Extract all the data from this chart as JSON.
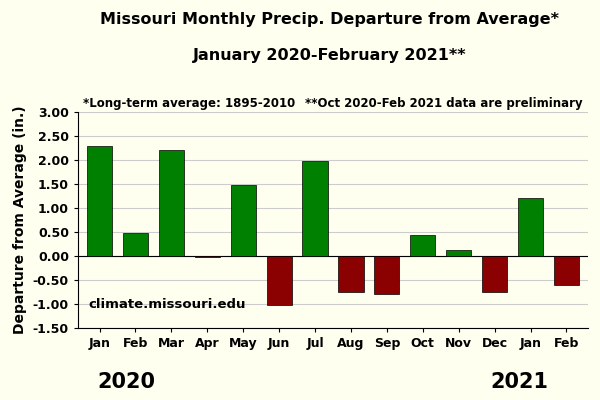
{
  "title_line1": "Missouri Monthly Precip. Departure from Average*",
  "title_line2": "January 2020-February 2021**",
  "ylabel": "Departure from Average (in.)",
  "annotation_left": "*Long-term average: 1895-2010",
  "annotation_right": "**Oct 2020-Feb 2021 data are preliminary",
  "website": "climate.missouri.edu",
  "months": [
    "Jan",
    "Feb",
    "Mar",
    "Apr",
    "May",
    "Jun",
    "Jul",
    "Aug",
    "Sep",
    "Oct",
    "Nov",
    "Dec",
    "Jan",
    "Feb"
  ],
  "values": [
    2.3,
    0.48,
    2.21,
    -0.03,
    1.47,
    -1.02,
    1.97,
    -0.75,
    -0.8,
    0.44,
    0.13,
    -0.75,
    1.2,
    -0.6
  ],
  "bar_color_positive": "#008000",
  "bar_color_negative": "#8B0000",
  "background_color": "#FFFFF0",
  "ylim": [
    -1.5,
    3.0
  ],
  "yticks": [
    -1.5,
    -1.0,
    -0.5,
    0.0,
    0.5,
    1.0,
    1.5,
    2.0,
    2.5,
    3.0
  ],
  "grid_color": "#cccccc",
  "title_fontsize": 11.5,
  "axis_label_fontsize": 10,
  "tick_fontsize": 9,
  "year_fontsize": 15,
  "annotation_fontsize": 8.5
}
